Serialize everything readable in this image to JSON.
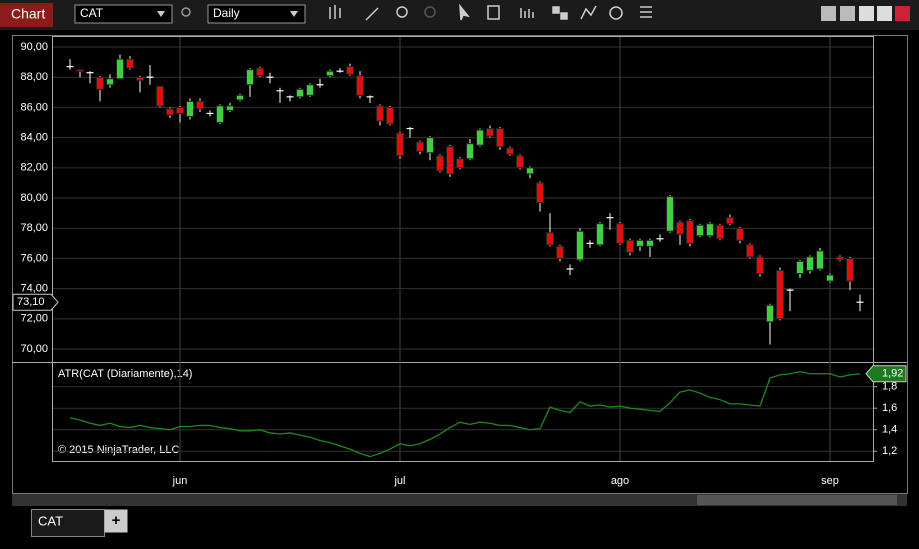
{
  "window": {
    "title": "Chart",
    "symbol": "CAT",
    "interval": "Daily"
  },
  "chart_data": [
    {
      "type": "candlestick",
      "categories": [
        null,
        null,
        null,
        null,
        null,
        null,
        null,
        null,
        null,
        null,
        null,
        "jun",
        null,
        null,
        null,
        null,
        null,
        null,
        null,
        null,
        null,
        null,
        null,
        null,
        null,
        null,
        null,
        null,
        null,
        null,
        null,
        null,
        null,
        "jul",
        null,
        null,
        null,
        null,
        null,
        null,
        null,
        null,
        null,
        null,
        null,
        null,
        null,
        null,
        null,
        null,
        null,
        null,
        null,
        null,
        null,
        "ago",
        null,
        null,
        null,
        null,
        null,
        null,
        null,
        null,
        null,
        null,
        null,
        null,
        null,
        null,
        null,
        null,
        null,
        null,
        null,
        null,
        "sep",
        null,
        null,
        null
      ],
      "open": [
        88.7,
        88.5,
        88.3,
        88.0,
        87.5,
        87.9,
        89.2,
        88.0,
        88.0,
        87.4,
        85.9,
        86.0,
        85.4,
        86.4,
        85.6,
        85.0,
        85.8,
        86.5,
        87.5,
        88.6,
        88.0,
        87.1,
        86.7,
        86.7,
        86.8,
        87.5,
        88.1,
        88.4,
        88.7,
        88.1,
        86.7,
        86.1,
        86.0,
        84.3,
        84.6,
        83.7,
        83.0,
        82.8,
        83.4,
        82.6,
        82.6,
        83.5,
        84.6,
        84.6,
        83.3,
        82.8,
        81.6,
        81.0,
        77.7,
        76.8,
        75.3,
        75.9,
        77.0,
        76.9,
        78.7,
        78.3,
        77.2,
        76.8,
        76.8,
        77.3,
        77.8,
        78.4,
        78.5,
        77.5,
        77.5,
        78.2,
        78.7,
        78.0,
        76.9,
        76.1,
        71.8,
        75.2,
        73.9,
        75.0,
        75.2,
        75.3,
        74.5,
        76.1,
        76.0,
        73.1
      ],
      "high": [
        89.2,
        88.5,
        88.4,
        88.1,
        88.2,
        89.5,
        89.4,
        88.1,
        88.8,
        87.4,
        86.0,
        86.1,
        86.6,
        86.6,
        85.8,
        86.2,
        86.3,
        86.9,
        88.6,
        88.7,
        88.3,
        87.3,
        86.8,
        87.3,
        87.6,
        87.9,
        88.5,
        88.6,
        88.9,
        88.4,
        86.8,
        86.2,
        86.1,
        84.4,
        84.7,
        83.8,
        84.1,
        82.9,
        83.5,
        82.7,
        83.9,
        84.6,
        84.8,
        84.7,
        83.4,
        82.9,
        82.1,
        81.1,
        79.0,
        76.9,
        75.6,
        78.0,
        77.2,
        78.4,
        79.0,
        78.4,
        77.3,
        77.3,
        77.3,
        77.6,
        80.2,
        78.5,
        78.6,
        78.3,
        78.4,
        78.3,
        78.9,
        78.1,
        77.0,
        76.2,
        73.0,
        75.4,
        74.0,
        75.9,
        76.2,
        76.7,
        75.0,
        76.2,
        76.1,
        73.6
      ],
      "low": [
        88.5,
        88.0,
        87.6,
        86.4,
        87.3,
        87.9,
        88.5,
        87.0,
        87.5,
        86.0,
        85.3,
        85.0,
        85.2,
        85.7,
        85.4,
        84.9,
        85.7,
        86.4,
        86.7,
        88.0,
        87.6,
        86.3,
        86.4,
        86.6,
        86.7,
        87.3,
        88.0,
        88.3,
        88.1,
        86.6,
        86.3,
        84.8,
        84.8,
        82.6,
        84.0,
        82.9,
        82.5,
        81.7,
        81.4,
        81.9,
        82.5,
        83.4,
        84.0,
        83.2,
        82.8,
        81.9,
        81.3,
        79.1,
        76.8,
        75.8,
        74.9,
        75.8,
        76.7,
        76.8,
        77.9,
        76.9,
        76.2,
        76.5,
        76.1,
        77.1,
        77.7,
        76.9,
        76.8,
        77.4,
        77.4,
        77.2,
        78.2,
        77.0,
        76.0,
        74.8,
        70.3,
        71.9,
        72.5,
        74.7,
        75.0,
        75.2,
        74.4,
        75.8,
        73.9,
        72.5
      ],
      "close": [
        88.7,
        88.4,
        88.3,
        87.2,
        87.9,
        89.2,
        88.6,
        87.8,
        88.0,
        86.1,
        85.5,
        85.6,
        86.4,
        85.9,
        85.6,
        86.1,
        86.1,
        86.8,
        88.5,
        88.1,
        88.0,
        87.1,
        86.7,
        87.2,
        87.5,
        87.5,
        88.4,
        88.4,
        88.2,
        86.8,
        86.7,
        85.1,
        84.9,
        82.8,
        84.6,
        83.1,
        84.0,
        81.8,
        81.6,
        82.0,
        83.6,
        84.5,
        84.1,
        83.4,
        82.9,
        82.0,
        82.0,
        79.7,
        76.9,
        76.0,
        75.3,
        77.8,
        77.0,
        78.3,
        78.7,
        77.0,
        76.4,
        77.2,
        77.2,
        77.3,
        80.1,
        77.6,
        77.0,
        78.2,
        78.3,
        77.3,
        78.3,
        77.2,
        76.1,
        75.0,
        72.9,
        72.0,
        73.9,
        75.8,
        76.1,
        76.5,
        74.9,
        75.9,
        74.5,
        73.1
      ],
      "up_color": "#3fcf3f",
      "down_color": "#e01010",
      "flat_color": "#ffffff",
      "ylim": [
        69.14,
        90.73
      ],
      "yticks": [
        {
          "value": 90,
          "label": "90,00"
        },
        {
          "value": 88,
          "label": "88,00"
        },
        {
          "value": 86,
          "label": "86,00"
        },
        {
          "value": 84,
          "label": "84,00"
        },
        {
          "value": 82,
          "label": "82,00"
        },
        {
          "value": 80,
          "label": "80,00"
        },
        {
          "value": 78,
          "label": "78,00"
        },
        {
          "value": 76,
          "label": "76,00"
        },
        {
          "value": 74,
          "label": "74,00"
        },
        {
          "value": 72,
          "label": "72,00"
        },
        {
          "value": 70,
          "label": "70,00"
        }
      ],
      "last_price": {
        "value": 73.1,
        "label": "73,10"
      },
      "grid": true
    },
    {
      "type": "line",
      "title": "ATR(CAT (Diariamente),14)",
      "annotation": "© 2015 NinjaTrader, LLC",
      "color": "#1f8a1f",
      "values": [
        1.51,
        1.49,
        1.46,
        1.44,
        1.46,
        1.43,
        1.42,
        1.44,
        1.42,
        1.41,
        1.4,
        1.43,
        1.43,
        1.44,
        1.44,
        1.42,
        1.41,
        1.39,
        1.39,
        1.4,
        1.37,
        1.36,
        1.37,
        1.35,
        1.33,
        1.3,
        1.28,
        1.25,
        1.22,
        1.18,
        1.15,
        1.18,
        1.22,
        1.27,
        1.25,
        1.27,
        1.31,
        1.36,
        1.42,
        1.47,
        1.45,
        1.47,
        1.46,
        1.44,
        1.44,
        1.42,
        1.4,
        1.41,
        1.61,
        1.58,
        1.56,
        1.66,
        1.62,
        1.63,
        1.61,
        1.62,
        1.6,
        1.59,
        1.58,
        1.57,
        1.65,
        1.75,
        1.77,
        1.74,
        1.7,
        1.68,
        1.64,
        1.64,
        1.63,
        1.62,
        1.88,
        1.91,
        1.92,
        1.94,
        1.92,
        1.92,
        1.92,
        1.89,
        1.91,
        1.92
      ],
      "ylim": [
        1.1,
        2.02
      ],
      "yticks": [
        {
          "value": 1.8,
          "label": "1,8"
        },
        {
          "value": 1.6,
          "label": "1,6"
        },
        {
          "value": 1.4,
          "label": "1,4"
        },
        {
          "value": 1.2,
          "label": "1,2"
        }
      ],
      "last_value": {
        "value": 1.92,
        "label": "1,92"
      },
      "grid": true
    }
  ],
  "tabs": [
    {
      "label": "CAT"
    }
  ],
  "add_tab": "+"
}
